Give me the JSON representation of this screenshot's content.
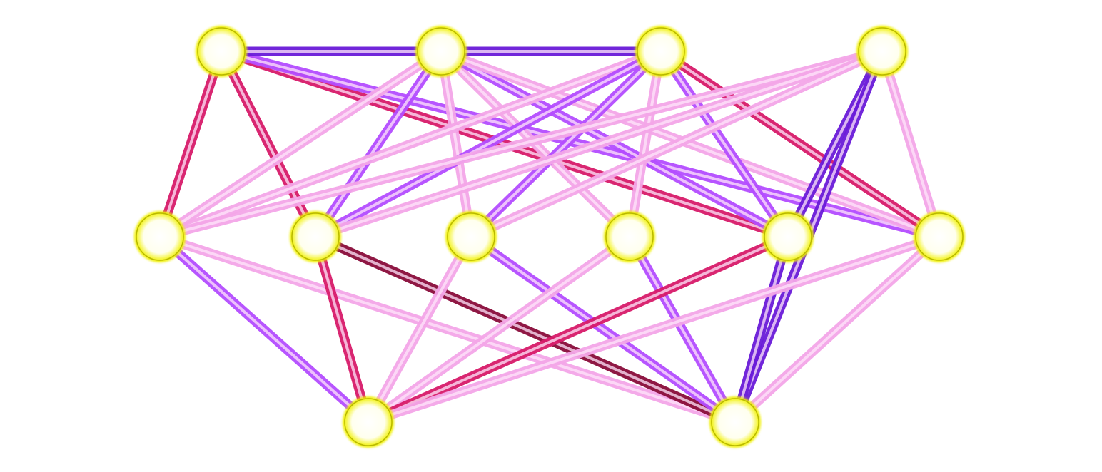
{
  "diagram": {
    "type": "layered-graph",
    "layers": [
      {
        "name": "top",
        "nodes": [
          "t1",
          "t2",
          "t3",
          "t4"
        ]
      },
      {
        "name": "middle",
        "nodes": [
          "m1",
          "m2",
          "m3",
          "m4",
          "m5",
          "m6"
        ]
      },
      {
        "name": "bottom",
        "nodes": [
          "b1",
          "b2"
        ]
      }
    ],
    "edges": [
      [
        "t1",
        "m1",
        "crimson"
      ],
      [
        "t1",
        "m2",
        "crimson"
      ],
      [
        "t1",
        "m5",
        "crimson"
      ],
      [
        "t1",
        "m6",
        "violet"
      ],
      [
        "t1",
        "t3",
        "indigo"
      ],
      [
        "t2",
        "m1",
        "pink"
      ],
      [
        "t2",
        "m2",
        "violet"
      ],
      [
        "t2",
        "m3",
        "pink"
      ],
      [
        "t2",
        "m4",
        "pink"
      ],
      [
        "t2",
        "m5",
        "violet"
      ],
      [
        "t2",
        "m6",
        "pink"
      ],
      [
        "t3",
        "m1",
        "pink"
      ],
      [
        "t3",
        "m2",
        "violet"
      ],
      [
        "t3",
        "m3",
        "violet"
      ],
      [
        "t3",
        "m4",
        "pink"
      ],
      [
        "t3",
        "m5",
        "violet"
      ],
      [
        "t3",
        "m6",
        "crimson"
      ],
      [
        "t4",
        "m1",
        "pink"
      ],
      [
        "t4",
        "m2",
        "pink"
      ],
      [
        "t4",
        "m3",
        "pink"
      ],
      [
        "t4",
        "m5",
        "indigo"
      ],
      [
        "t4",
        "m6",
        "pink"
      ],
      [
        "t4",
        "b2",
        "indigo"
      ],
      [
        "m1",
        "b1",
        "violet"
      ],
      [
        "m1",
        "b2",
        "pink"
      ],
      [
        "m2",
        "b1",
        "crimson"
      ],
      [
        "m2",
        "b2",
        "maroon"
      ],
      [
        "m3",
        "b1",
        "pink"
      ],
      [
        "m3",
        "b2",
        "violet"
      ],
      [
        "m4",
        "b1",
        "pink"
      ],
      [
        "m4",
        "b2",
        "violet"
      ],
      [
        "m5",
        "b1",
        "crimson"
      ],
      [
        "m5",
        "b2",
        "indigo"
      ],
      [
        "m6",
        "b1",
        "pink"
      ],
      [
        "m6",
        "b2",
        "pink"
      ]
    ],
    "colors": {
      "pink": "#f4a6e8",
      "crimson": "#d81b6a",
      "violet": "#b44cff",
      "indigo": "#6a1bd9",
      "maroon": "#8a0c3a",
      "node_fill": "#ffffff",
      "node_ring": "#f0f000"
    }
  }
}
